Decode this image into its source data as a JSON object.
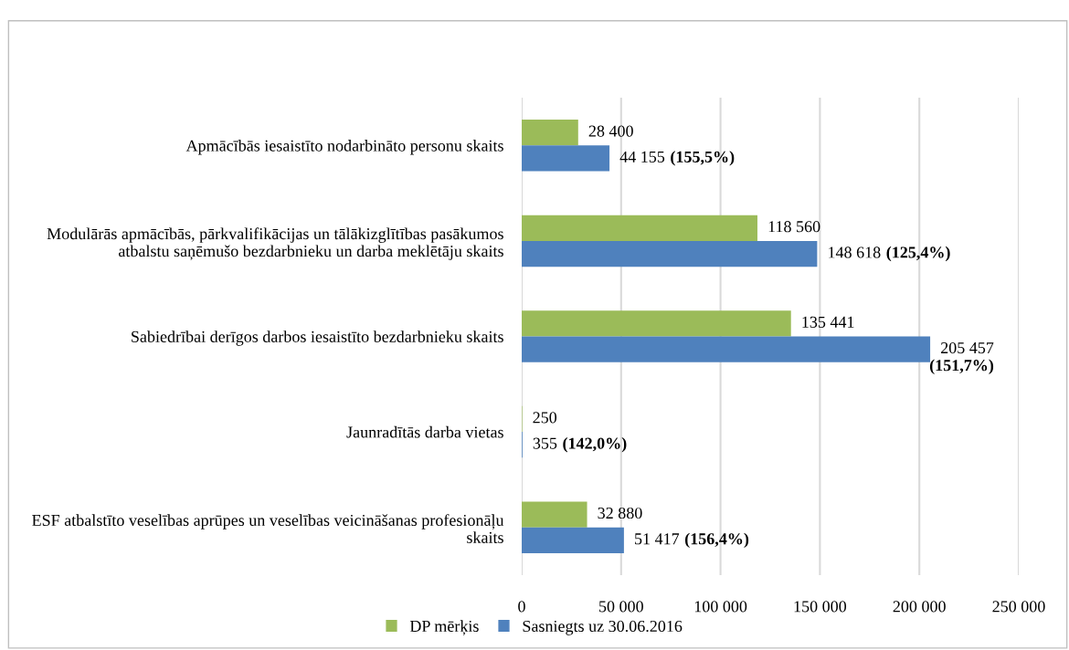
{
  "chart_data": {
    "type": "bar",
    "orientation": "horizontal",
    "categories": [
      "Apmācībās iesaistīto nodarbināto personu skaits",
      "Modulārās apmācībās, pārkvalifikācijas un tālākizglītības pasākumos atbalstu saņēmušo bezdarbnieku un darba meklētāju skaits",
      "Sabiedrībai derīgos darbos iesaistīto bezdarbnieku skaits",
      "Jaunradītās darba vietas",
      "ESF atbalstīto veselības aprūpes un veselības veicināšanas profesionāļu skaits"
    ],
    "series": [
      {
        "name": "DP mērķis",
        "color": "#9bbb59",
        "values": [
          28400,
          118560,
          135441,
          250,
          32880
        ],
        "value_labels": [
          "28 400",
          "118 560",
          "135 441",
          "250",
          "32 880"
        ]
      },
      {
        "name": "Sasniegts uz 30.06.2016",
        "color": "#4f81bd",
        "values": [
          44155,
          148618,
          205457,
          355,
          51417
        ],
        "value_labels": [
          "44 155 (155,5%)",
          "148 618 (125,4%)",
          "205 457 (151,7%)",
          "355 (142,0%)",
          "51 417 (156,4%)"
        ]
      }
    ],
    "xlim": [
      0,
      250000
    ],
    "xticks": [
      {
        "value": 0,
        "label": "0"
      },
      {
        "value": 50000,
        "label": "50 000"
      },
      {
        "value": 100000,
        "label": "100 000"
      },
      {
        "value": 150000,
        "label": "150 000"
      },
      {
        "value": 200000,
        "label": "200 000"
      },
      {
        "value": 250000,
        "label": "250 000"
      }
    ],
    "grid": "x",
    "legend": "bottom"
  }
}
